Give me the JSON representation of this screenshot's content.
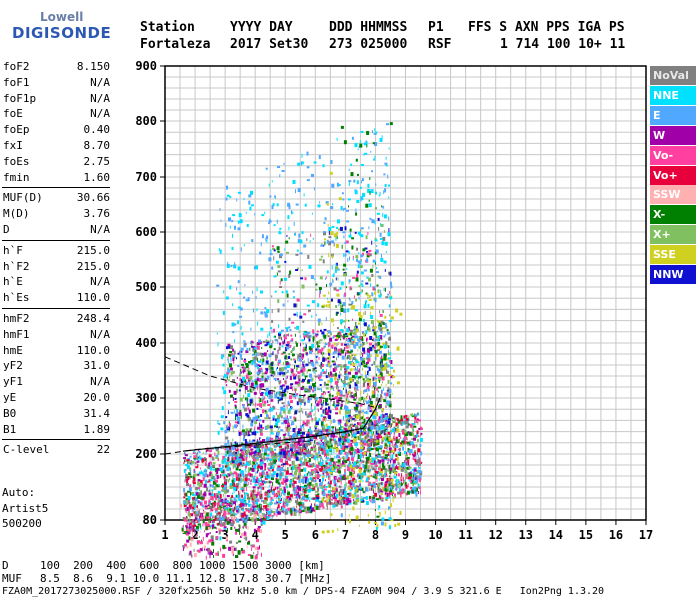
{
  "logo": {
    "line1": "Lowell",
    "line2": "DIGISONDE"
  },
  "header": {
    "labels": [
      "Station",
      "YYYY DAY",
      "DDD HHMMSS",
      "P1",
      "FFS S AXN PPS IGA PS"
    ],
    "values": [
      "Fortaleza",
      "2017 Set30",
      "273 025000",
      "RSF",
      "1 714 100 10+ 11"
    ]
  },
  "params": [
    {
      "name": "foF2",
      "value": "8.150"
    },
    {
      "name": "foF1",
      "value": "N/A"
    },
    {
      "name": "foF1p",
      "value": "N/A"
    },
    {
      "name": "foE",
      "value": "N/A"
    },
    {
      "name": "foEp",
      "value": "0.40"
    },
    {
      "name": "fxI",
      "value": "8.70"
    },
    {
      "name": "foEs",
      "value": "2.75"
    },
    {
      "name": "fmin",
      "value": "1.60"
    },
    {
      "name": "MUF(D)",
      "value": "30.66"
    },
    {
      "name": "M(D)",
      "value": "3.76"
    },
    {
      "name": "D",
      "value": "N/A"
    },
    {
      "name": "h`F",
      "value": "215.0"
    },
    {
      "name": "h`F2",
      "value": "215.0"
    },
    {
      "name": "h`E",
      "value": "N/A"
    },
    {
      "name": "h`Es",
      "value": "110.0"
    },
    {
      "name": "hmF2",
      "value": "248.4"
    },
    {
      "name": "hmF1",
      "value": "N/A"
    },
    {
      "name": "hmE",
      "value": "110.0"
    },
    {
      "name": "yF2",
      "value": "31.0"
    },
    {
      "name": "yF1",
      "value": "N/A"
    },
    {
      "name": "yE",
      "value": "20.0"
    },
    {
      "name": "B0",
      "value": "31.4"
    },
    {
      "name": "B1",
      "value": "1.89"
    },
    {
      "name": "C-level",
      "value": "22"
    }
  ],
  "info": {
    "line1": "Auto:",
    "line2": "Artist5",
    "line3": "500200"
  },
  "legend": [
    {
      "label": "NoVal",
      "color": "#808080"
    },
    {
      "label": "NNE",
      "color": "#00e0ff"
    },
    {
      "label": "E",
      "color": "#50a8ff"
    },
    {
      "label": "W",
      "color": "#a000a8"
    },
    {
      "label": "Vo-",
      "color": "#ff40a0"
    },
    {
      "label": "Vo+",
      "color": "#e8003c"
    },
    {
      "label": "SSW",
      "color": "#ffb0b0"
    },
    {
      "label": "X-",
      "color": "#008000"
    },
    {
      "label": "X+",
      "color": "#80c060"
    },
    {
      "label": "SSE",
      "color": "#d0d020"
    },
    {
      "label": "NNW",
      "color": "#1010d0"
    }
  ],
  "bottom": {
    "d_label": "D",
    "d_values": "100  200  400  600  800 1000 1500 3000 [km]",
    "muf_label": "MUF",
    "muf_values": "8.5  8.6  9.1 10.0 11.1 12.8 17.8 30.7 [MHz]",
    "footer": "FZA0M_2017273025000.RSF / 320fx256h 50 kHz 5.0 km / DPS-4 FZA0M 904 / 3.9 S 321.6 E   Ion2Png 1.3.20"
  },
  "chart_data": {
    "type": "scatter",
    "xlim": [
      1,
      17
    ],
    "ylim": [
      80,
      900
    ],
    "xticks": [
      1,
      2,
      3,
      4,
      5,
      6,
      7,
      8,
      9,
      10,
      11,
      12,
      13,
      14,
      15,
      16,
      17
    ],
    "yticks": [
      80,
      200,
      300,
      400,
      500,
      600,
      700,
      800,
      900
    ],
    "grid": true,
    "trace_profile": {
      "x": [
        1.6,
        3.0,
        4.5,
        6.0,
        7.0,
        7.6,
        8.0,
        8.15
      ],
      "y": [
        205,
        213,
        222,
        232,
        240,
        246,
        280,
        300
      ]
    },
    "dashed_profile": {
      "x": [
        1.0,
        2.5,
        4.0,
        5.5,
        6.5,
        7.5,
        8.1
      ],
      "y": [
        375,
        340,
        318,
        305,
        298,
        290,
        282
      ]
    },
    "dashed_lower": {
      "x": [
        1.0,
        2.0,
        3.0,
        4.0,
        5.0,
        6.0
      ],
      "y": [
        200,
        208,
        212,
        216,
        220,
        224
      ]
    }
  }
}
